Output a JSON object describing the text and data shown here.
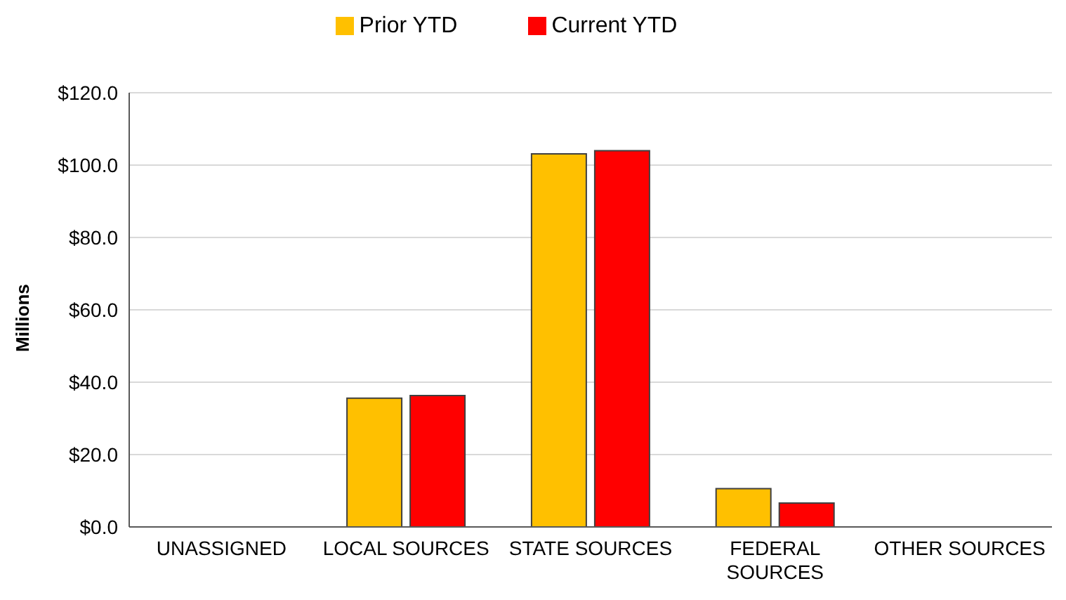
{
  "chart_data": {
    "type": "bar",
    "ylabel": "Millions",
    "categories": [
      "UNASSIGNED",
      "LOCAL SOURCES",
      "STATE SOURCES",
      "FEDERAL SOURCES",
      "OTHER SOURCES"
    ],
    "series": [
      {
        "name": "Prior YTD",
        "color": "#ffc000",
        "values": [
          0,
          35.6,
          103.1,
          10.6,
          0
        ]
      },
      {
        "name": "Current YTD",
        "color": "#ff0000",
        "values": [
          0,
          36.3,
          104.0,
          6.6,
          0
        ]
      }
    ],
    "ylim": [
      0,
      120
    ],
    "yticks": [
      {
        "value": 0,
        "label": "$0.0"
      },
      {
        "value": 20,
        "label": "$20.0"
      },
      {
        "value": 40,
        "label": "$40.0"
      },
      {
        "value": 60,
        "label": "$60.0"
      },
      {
        "value": 80,
        "label": "$80.0"
      },
      {
        "value": 100,
        "label": "$100.0"
      },
      {
        "value": 120,
        "label": "$120.0"
      }
    ],
    "grid": "y",
    "legend": "top"
  }
}
